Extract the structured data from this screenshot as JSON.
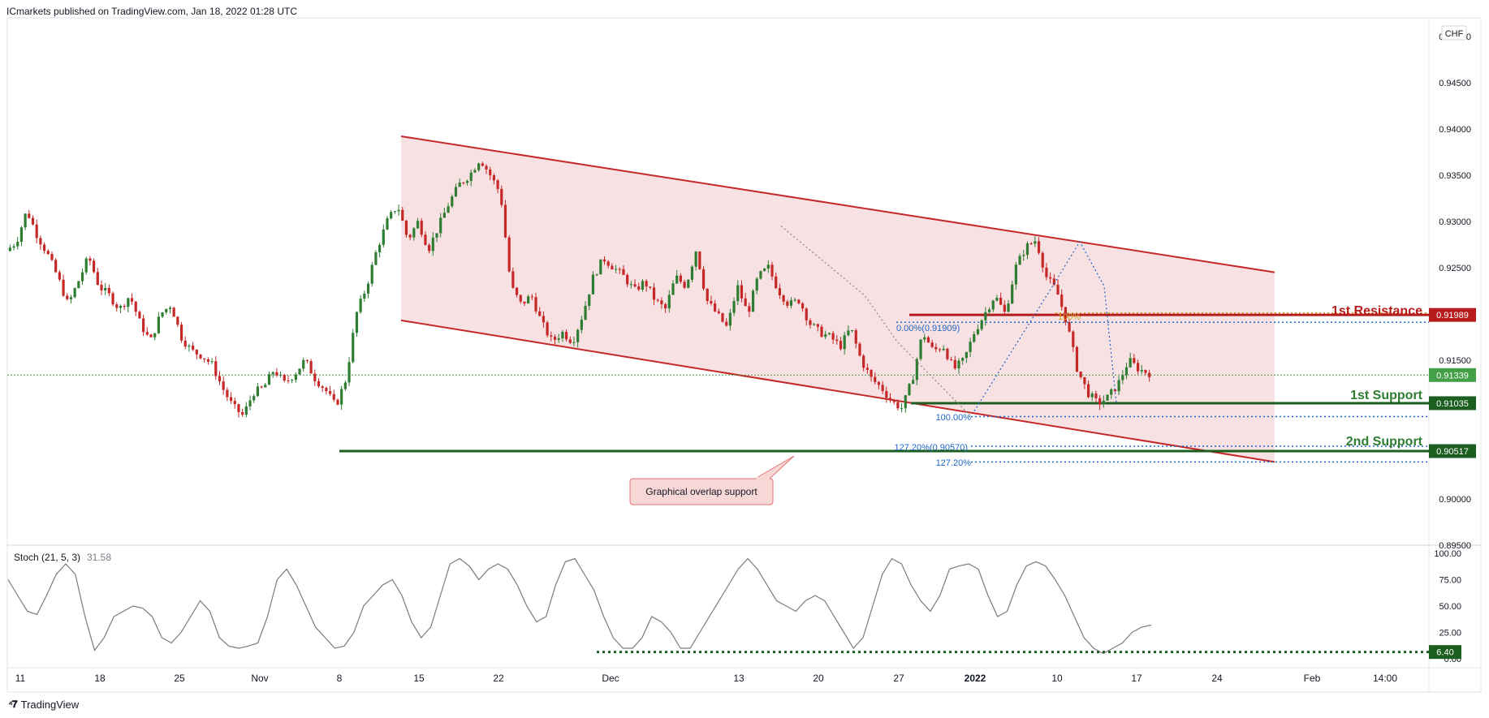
{
  "header": {
    "published": "ICmarkets published on TradingView.com, Jan 18, 2022 01:28 UTC"
  },
  "footer": {
    "brand": "TradingView"
  },
  "colors": {
    "resistance": "#b71c1c",
    "support": "#1b5e20",
    "channel_fill": "#f5dadb",
    "channel_line": "#c62828",
    "fib_blue": "#1e66c8",
    "candle_up": "#2e7d32",
    "candle_down": "#c62828",
    "current_price": "#43a047"
  },
  "chart_data": [
    {
      "type": "candlestick",
      "symbol_currency": "CHF",
      "y_ticks": [
        "0.95000",
        "0.94500",
        "0.94000",
        "0.93500",
        "0.93000",
        "0.92500",
        "0.92000",
        "0.91500",
        "0.91000",
        "0.90500",
        "0.90000",
        "0.89500"
      ],
      "ylim": [
        0.895,
        0.952
      ],
      "x_ticks": [
        "11",
        "18",
        "25",
        "Nov",
        "8",
        "15",
        "22",
        "Dec",
        "13",
        "20",
        "27",
        "2022",
        "10",
        "17",
        "24",
        "Feb",
        "14:00"
      ],
      "price_labels": {
        "resistance": "0.91989",
        "current": "0.91339",
        "support1": "0.91035",
        "support2": "0.90517"
      },
      "levels": {
        "resistance": 0.91989,
        "current": 0.91339,
        "support1": 0.91035,
        "support2": 0.90517
      },
      "annotations": {
        "resistance_label": "1st Resistance",
        "support1_label": "1st Support",
        "support2_label": "2nd Support",
        "callout": "Graphical overlap support",
        "fib_start": "0.00%(0.91909)",
        "fib_100": "100.00%",
        "fib_127_value": "127.20%(0.90570)",
        "fib_127": "127.20%",
        "fib_top": "100%"
      },
      "fib_levels": {
        "fib_start": 0.91909,
        "fib_100": 0.9089,
        "fib_127": 0.9057,
        "fib_127b": 0.904
      },
      "channel": {
        "upper": [
          [
            0.9392,
            0.9245
          ]
        ],
        "lower": [
          [
            0.9193,
            0.904
          ]
        ]
      },
      "price_path": [
        0.9268,
        0.9278,
        0.9312,
        0.9285,
        0.9265,
        0.924,
        0.921,
        0.9235,
        0.9262,
        0.923,
        0.922,
        0.9205,
        0.922,
        0.919,
        0.917,
        0.92,
        0.921,
        0.9175,
        0.916,
        0.9155,
        0.9145,
        0.912,
        0.91,
        0.909,
        0.9115,
        0.912,
        0.914,
        0.9125,
        0.9135,
        0.915,
        0.913,
        0.9118,
        0.91,
        0.913,
        0.92,
        0.923,
        0.927,
        0.93,
        0.9318,
        0.928,
        0.93,
        0.927,
        0.9295,
        0.932,
        0.934,
        0.935,
        0.9368,
        0.935,
        0.933,
        0.923,
        0.921,
        0.922,
        0.919,
        0.917,
        0.918,
        0.917,
        0.92,
        0.924,
        0.926,
        0.925,
        0.924,
        0.9225,
        0.9235,
        0.9215,
        0.9205,
        0.924,
        0.923,
        0.927,
        0.9215,
        0.92,
        0.9185,
        0.923,
        0.92,
        0.924,
        0.925,
        0.9225,
        0.921,
        0.9215,
        0.919,
        0.918,
        0.9175,
        0.9165,
        0.9185,
        0.915,
        0.913,
        0.912,
        0.9105,
        0.9098,
        0.913,
        0.918,
        0.916,
        0.9165,
        0.914,
        0.915,
        0.918,
        0.92,
        0.922,
        0.92,
        0.925,
        0.9272,
        0.928,
        0.924,
        0.9225,
        0.919,
        0.914,
        0.9115,
        0.9103,
        0.911,
        0.9125,
        0.915,
        0.914,
        0.9136
      ],
      "x_range_labels": {
        "start": "11",
        "end": "14:00"
      }
    },
    {
      "type": "line",
      "title": "Stoch (21, 5, 3)",
      "last_value": "31.58",
      "y_ticks": [
        "100.00",
        "75.00",
        "50.00",
        "25.00",
        "0.00"
      ],
      "ylim": [
        0,
        100
      ],
      "level_label": "6.40",
      "level": 6.4,
      "values": [
        75,
        60,
        45,
        42,
        60,
        80,
        90,
        80,
        40,
        8,
        20,
        40,
        45,
        50,
        48,
        40,
        20,
        15,
        25,
        40,
        55,
        45,
        20,
        12,
        10,
        12,
        15,
        40,
        75,
        85,
        70,
        50,
        30,
        20,
        10,
        12,
        25,
        50,
        60,
        70,
        75,
        60,
        35,
        20,
        30,
        60,
        90,
        95,
        88,
        75,
        85,
        90,
        85,
        70,
        50,
        35,
        40,
        70,
        92,
        95,
        80,
        65,
        40,
        20,
        10,
        10,
        20,
        40,
        35,
        25,
        10,
        10,
        25,
        40,
        55,
        70,
        85,
        95,
        85,
        70,
        55,
        50,
        45,
        55,
        60,
        55,
        40,
        25,
        10,
        20,
        50,
        80,
        95,
        90,
        70,
        55,
        45,
        60,
        85,
        88,
        90,
        85,
        60,
        40,
        45,
        70,
        88,
        92,
        88,
        75,
        60,
        40,
        20,
        10,
        5,
        10,
        15,
        25,
        30,
        32
      ]
    }
  ]
}
